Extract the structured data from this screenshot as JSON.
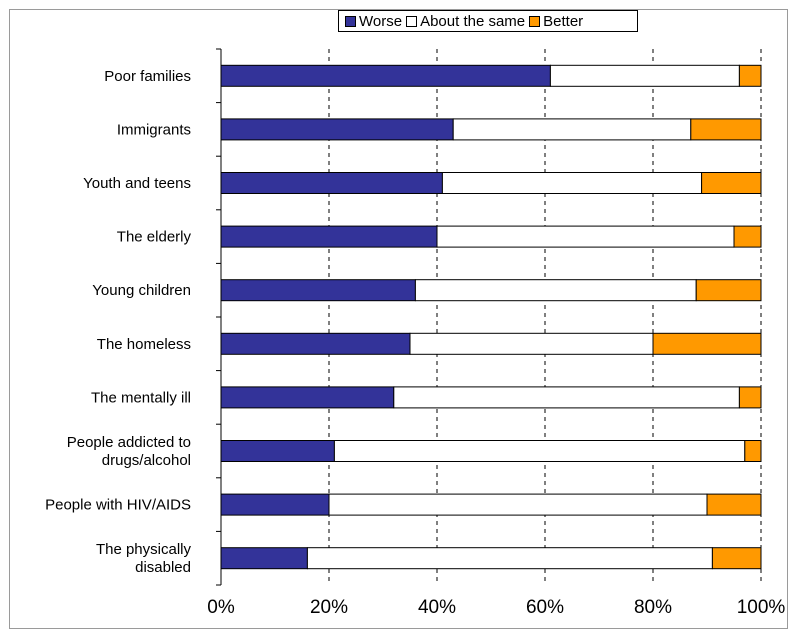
{
  "chart_data": {
    "type": "bar",
    "orientation": "horizontal",
    "stacked": true,
    "percent_stacked": true,
    "categories": [
      "Poor families",
      "Immigrants",
      "Youth and teens",
      "The elderly",
      "Young children",
      "The homeless",
      "The mentally ill",
      "People addicted to drugs/alcohol",
      "People with HIV/AIDS",
      "The physically disabled"
    ],
    "category_label_lines": [
      [
        "Poor families"
      ],
      [
        "Immigrants"
      ],
      [
        "Youth and teens"
      ],
      [
        "The elderly"
      ],
      [
        "Young children"
      ],
      [
        "The homeless"
      ],
      [
        "The mentally ill"
      ],
      [
        "People addicted to",
        "drugs/alcohol"
      ],
      [
        "People with HIV/AIDS"
      ],
      [
        "The physically",
        "disabled"
      ]
    ],
    "series": [
      {
        "name": "Worse",
        "color": "#333399",
        "values": [
          61,
          43,
          41,
          40,
          36,
          35,
          32,
          21,
          20,
          16
        ]
      },
      {
        "name": "About the same",
        "color": "#ffffff",
        "values": [
          35,
          44,
          48,
          55,
          52,
          45,
          64,
          76,
          70,
          75
        ]
      },
      {
        "name": "Better",
        "color": "#ff9900",
        "values": [
          4,
          13,
          11,
          5,
          12,
          20,
          4,
          3,
          10,
          9
        ]
      }
    ],
    "xlim": [
      0,
      100
    ],
    "x_ticks": [
      "0%",
      "20%",
      "40%",
      "60%",
      "80%",
      "100%"
    ],
    "grid": {
      "vertical": true,
      "style": "dashed"
    },
    "legend_position": "top",
    "title": "",
    "xlabel": "",
    "ylabel": ""
  }
}
